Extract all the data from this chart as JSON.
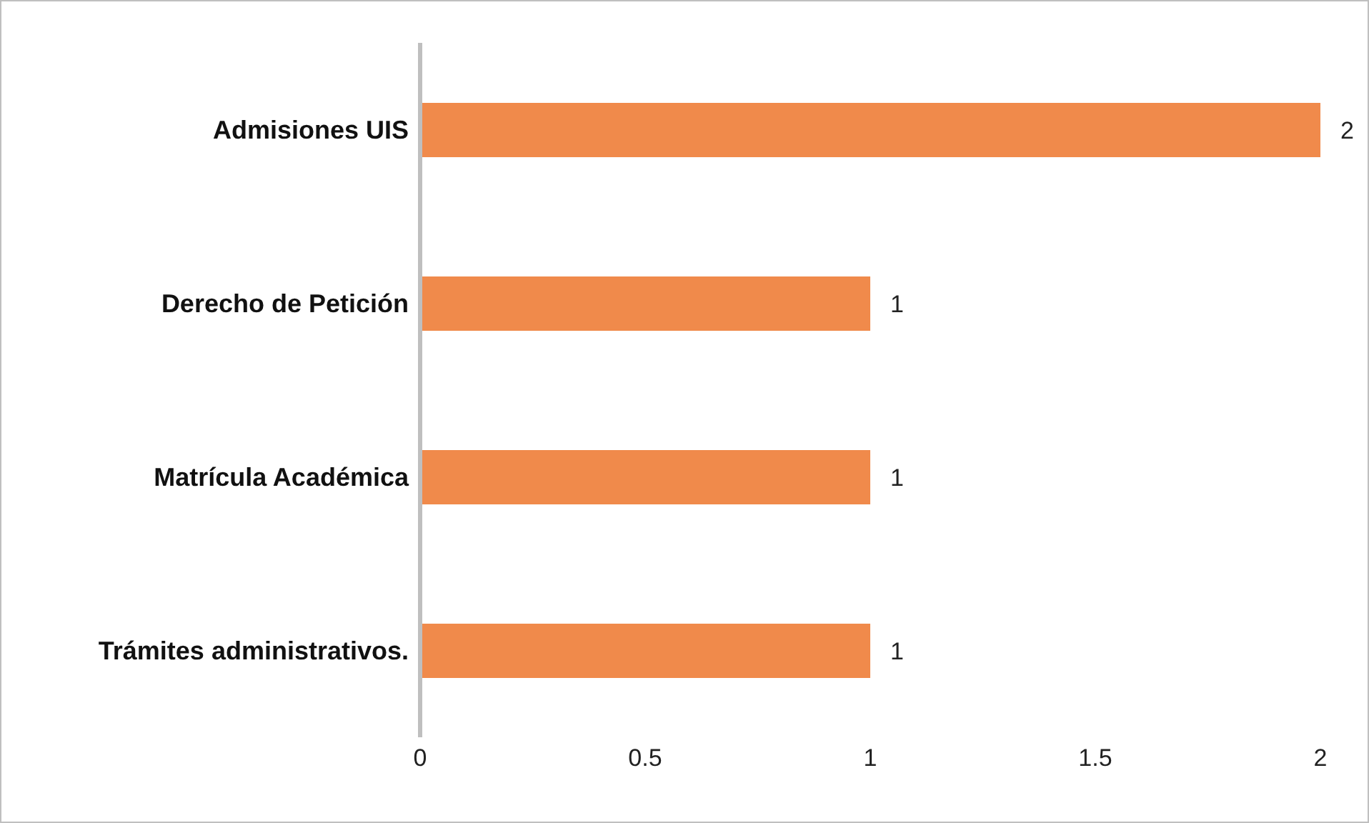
{
  "chart_data": {
    "type": "bar",
    "orientation": "horizontal",
    "categories": [
      "Admisiones UIS",
      "Derecho de Petición",
      "Matrícula Académica",
      "Trámites administrativos."
    ],
    "values": [
      2,
      1,
      1,
      1
    ],
    "color": "#f08a4b",
    "xlim": [
      0,
      2
    ],
    "xticks": [
      0,
      0.5,
      1,
      1.5,
      2
    ],
    "grid": false,
    "data_labels": true
  }
}
